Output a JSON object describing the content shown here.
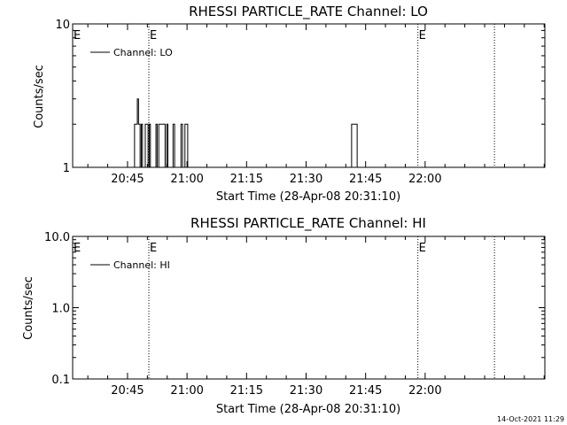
{
  "footer_timestamp": "14-Oct-2021 11:29",
  "chart_data": [
    {
      "type": "line",
      "title": "RHESSI PARTICLE_RATE Channel: LO",
      "xlabel": "Start Time (28-Apr-08 20:31:10)",
      "ylabel": "Counts/sec",
      "y_scale": "log",
      "ylim": [
        1,
        10
      ],
      "y_ticks": [
        {
          "value": 1,
          "label": "1"
        },
        {
          "value": 10,
          "label": "10"
        }
      ],
      "xlim_minutes": [
        0,
        119
      ],
      "x_ticks": [
        {
          "value": 13.83,
          "label": "20:45"
        },
        {
          "value": 28.83,
          "label": "21:00"
        },
        {
          "value": 43.83,
          "label": "21:15"
        },
        {
          "value": 58.83,
          "label": "21:30"
        },
        {
          "value": 73.83,
          "label": "21:45"
        },
        {
          "value": 88.83,
          "label": "22:00"
        }
      ],
      "event_lines": [
        {
          "x": 19.2,
          "label": "E"
        },
        {
          "x": 87.0,
          "label": "E"
        },
        {
          "x": 106.3,
          "label": ""
        }
      ],
      "legend": {
        "position": "top-left",
        "entries": [
          "Channel: LO"
        ]
      },
      "series": [
        {
          "name": "Channel: LO",
          "x": [
            15.0,
            15.3,
            15.6,
            16.0,
            16.3,
            16.6,
            17.0,
            17.3,
            17.6,
            18.0,
            18.3,
            18.7,
            19.0,
            19.3,
            19.6,
            20.0,
            20.3,
            20.7,
            21.0,
            21.3,
            21.7,
            22.0,
            22.3,
            22.7,
            23.0,
            23.3,
            23.7,
            24.0,
            24.3,
            24.7,
            25.0,
            25.3,
            25.7,
            26.0,
            26.3,
            26.7,
            27.0,
            27.3,
            27.7,
            28.0,
            28.3,
            28.7,
            29.0,
            29.3,
            29.7,
            30.0,
            70.0,
            70.3,
            70.6,
            71.0,
            71.3,
            71.7,
            72.0
          ],
          "y": [
            1,
            1,
            2,
            2,
            3,
            2,
            1,
            2,
            1,
            1,
            2,
            2,
            1,
            2,
            1,
            1,
            1,
            1,
            2,
            1,
            2,
            2,
            2,
            2,
            2,
            1,
            2,
            1,
            1,
            1,
            1,
            2,
            1,
            1,
            1,
            1,
            1,
            2,
            1,
            1,
            2,
            2,
            1,
            1,
            1,
            1,
            1,
            2,
            2,
            2,
            2,
            1,
            1
          ]
        }
      ]
    },
    {
      "type": "line",
      "title": "RHESSI PARTICLE_RATE Channel: HI",
      "xlabel": "Start Time (28-Apr-08 20:31:10)",
      "ylabel": "Counts/sec",
      "y_scale": "log",
      "ylim": [
        0.1,
        10
      ],
      "y_ticks": [
        {
          "value": 0.1,
          "label": "0.1"
        },
        {
          "value": 1,
          "label": "1.0"
        },
        {
          "value": 10,
          "label": "10.0"
        }
      ],
      "xlim_minutes": [
        0,
        119
      ],
      "x_ticks": [
        {
          "value": 13.83,
          "label": "20:45"
        },
        {
          "value": 28.83,
          "label": "21:00"
        },
        {
          "value": 43.83,
          "label": "21:15"
        },
        {
          "value": 58.83,
          "label": "21:30"
        },
        {
          "value": 73.83,
          "label": "21:45"
        },
        {
          "value": 88.83,
          "label": "22:00"
        }
      ],
      "event_lines": [
        {
          "x": 19.2,
          "label": "E"
        },
        {
          "x": 87.0,
          "label": "E"
        },
        {
          "x": 106.3,
          "label": ""
        }
      ],
      "legend": {
        "position": "top-left",
        "entries": [
          "Channel: HI"
        ]
      },
      "series": [
        {
          "name": "Channel: HI",
          "x": [],
          "y": []
        }
      ]
    }
  ]
}
